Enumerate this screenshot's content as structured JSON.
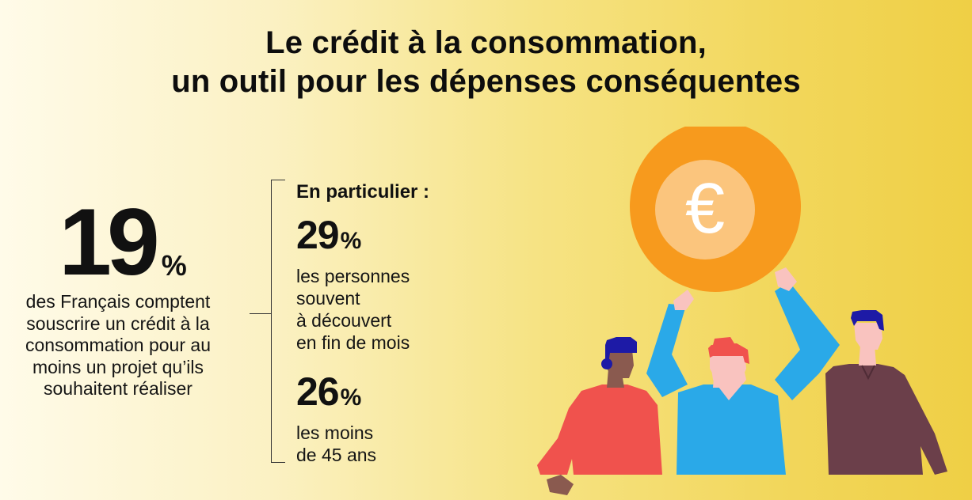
{
  "header": {
    "title_line_1": "Le crédit à la consommation,",
    "title_line_2": "un outil pour les dépenses conséquentes"
  },
  "main_stat": {
    "value": "19",
    "unit": "%",
    "description": "des Français comptent souscrire un crédit à la consommation pour au moins un projet qu’ils souhaitent réaliser"
  },
  "details": {
    "heading": "En particulier :",
    "items": [
      {
        "value": "29",
        "unit": "%",
        "description_lines": [
          "les personnes",
          "souvent",
          "à découvert",
          "en fin de mois"
        ]
      },
      {
        "value": "26",
        "unit": "%",
        "description_lines": [
          "les moins",
          "de 45 ans"
        ]
      }
    ]
  },
  "illustration": {
    "coin_symbol": "€",
    "icon": "people-holding-euro-coin-illustration",
    "colors": {
      "coin_outer": "#f79a1d",
      "coin_inner": "#fbc57d",
      "person_left_shirt": "#f0524d",
      "person_center_shirt": "#2aa9e8",
      "person_right_shirt": "#6b3f4a",
      "hair_dark_blue": "#1d1aa6",
      "hair_red": "#f0524d",
      "skin_light": "#f9c3bf",
      "skin_dark": "#8a5a4f"
    }
  }
}
